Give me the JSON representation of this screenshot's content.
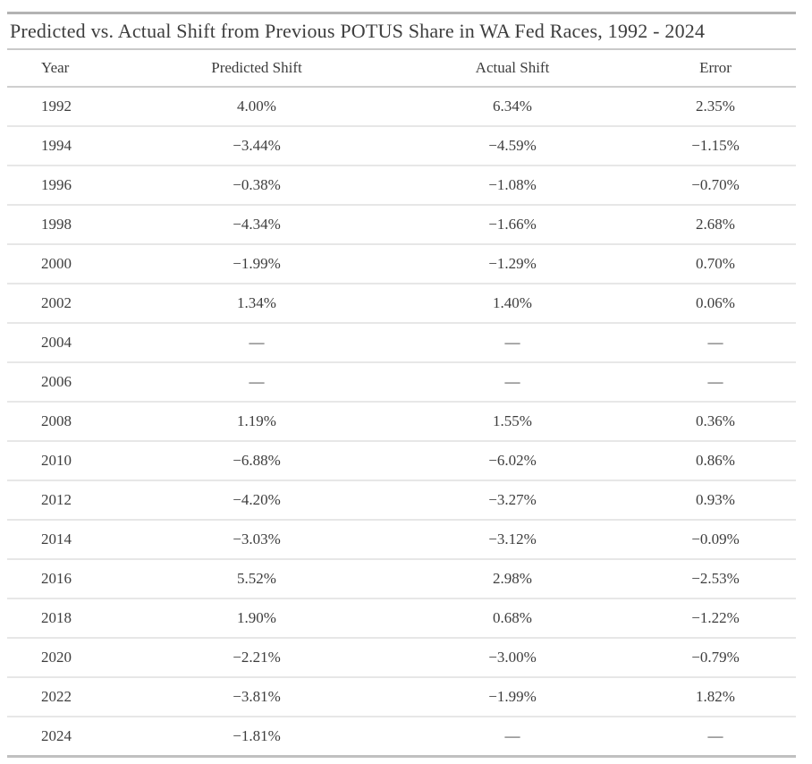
{
  "chart_data": {
    "type": "table",
    "title": "Predicted vs. Actual Shift from Previous POTUS Share in WA Fed Races, 1992 - 2024",
    "columns": [
      "Year",
      "Predicted Shift",
      "Actual Shift",
      "Error"
    ],
    "rows": [
      [
        "1992",
        "4.00%",
        "6.34%",
        "2.35%"
      ],
      [
        "1994",
        "−3.44%",
        "−4.59%",
        "−1.15%"
      ],
      [
        "1996",
        "−0.38%",
        "−1.08%",
        "−0.70%"
      ],
      [
        "1998",
        "−4.34%",
        "−1.66%",
        "2.68%"
      ],
      [
        "2000",
        "−1.99%",
        "−1.29%",
        "0.70%"
      ],
      [
        "2002",
        "1.34%",
        "1.40%",
        "0.06%"
      ],
      [
        "2004",
        "—",
        "—",
        "—"
      ],
      [
        "2006",
        "—",
        "—",
        "—"
      ],
      [
        "2008",
        "1.19%",
        "1.55%",
        "0.36%"
      ],
      [
        "2010",
        "−6.88%",
        "−6.02%",
        "0.86%"
      ],
      [
        "2012",
        "−4.20%",
        "−3.27%",
        "0.93%"
      ],
      [
        "2014",
        "−3.03%",
        "−3.12%",
        "−0.09%"
      ],
      [
        "2016",
        "5.52%",
        "2.98%",
        "−2.53%"
      ],
      [
        "2018",
        "1.90%",
        "0.68%",
        "−1.22%"
      ],
      [
        "2020",
        "−2.21%",
        "−3.00%",
        "−0.79%"
      ],
      [
        "2022",
        "−3.81%",
        "−1.99%",
        "1.82%"
      ],
      [
        "2024",
        "−1.81%",
        "—",
        "—"
      ]
    ],
    "missing_value_marker": "—"
  },
  "colors": {
    "text": "#3d3d3d",
    "background": "#ffffff",
    "rule_heavy": "#b3b3b3",
    "rule_medium": "#c9c9c9",
    "rule_light": "#e7e7e7"
  }
}
